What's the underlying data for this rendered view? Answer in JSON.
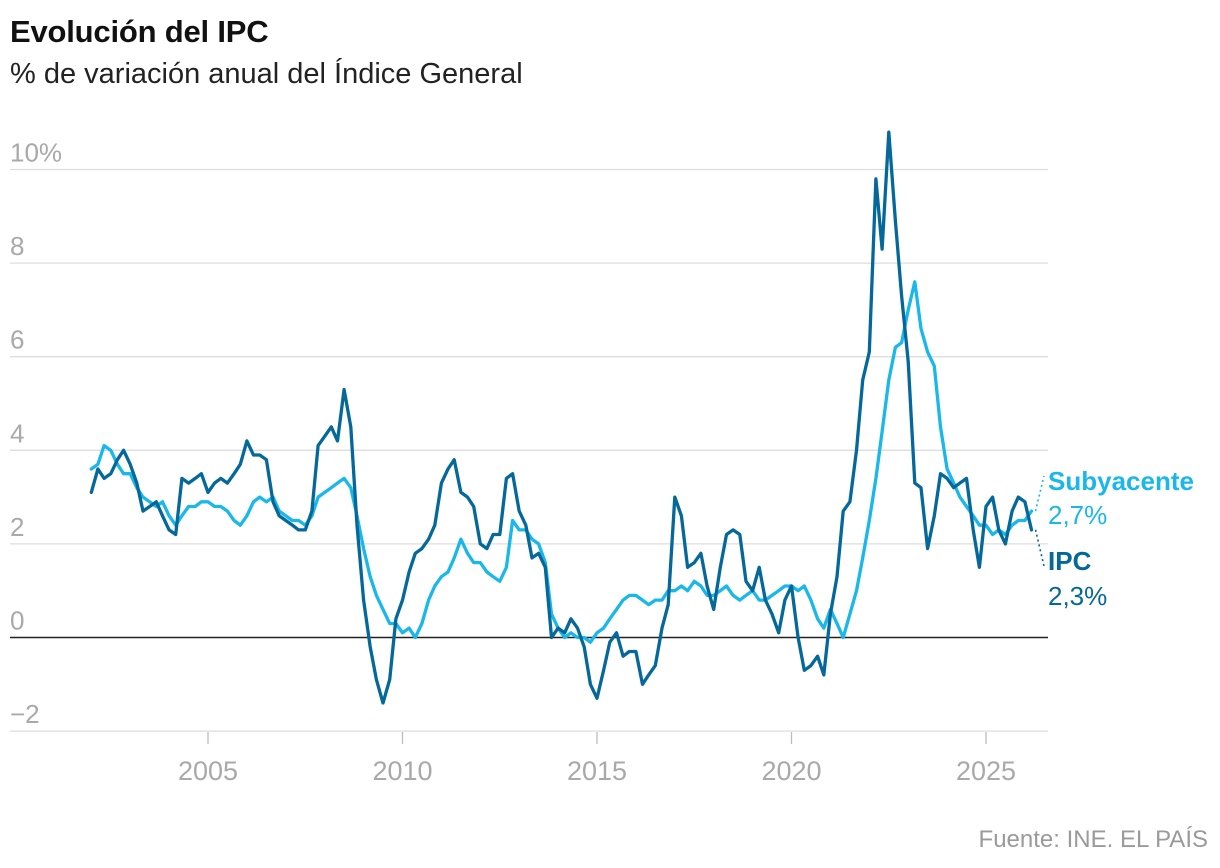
{
  "title": "Evolución del IPC",
  "subtitle": "% de variación anual del Índice General",
  "source": "Fuente: INE. EL PAÍS",
  "chart_data": {
    "type": "line",
    "ylim": [
      -2,
      10
    ],
    "xlim": [
      2002.0,
      2026.3
    ],
    "y_ticks": [
      {
        "value": 10,
        "label": "10%"
      },
      {
        "value": 8,
        "label": "8"
      },
      {
        "value": 6,
        "label": "6"
      },
      {
        "value": 4,
        "label": "4"
      },
      {
        "value": 2,
        "label": "2"
      },
      {
        "value": 0,
        "label": "0"
      },
      {
        "value": -2,
        "label": "−2"
      }
    ],
    "x_ticks": [
      {
        "value": 2005,
        "label": "2005"
      },
      {
        "value": 2010,
        "label": "2010"
      },
      {
        "value": 2015,
        "label": "2015"
      },
      {
        "value": 2020,
        "label": "2020"
      },
      {
        "value": 2025,
        "label": "2025"
      }
    ],
    "grid": true,
    "legend": "end-labels-right",
    "series": [
      {
        "name": "Subyacente",
        "color": "#1ab8ea",
        "end_label": "Subyacente",
        "end_value_label": "2,7%",
        "points": [
          [
            2002.0,
            3.6
          ],
          [
            2002.17,
            3.7
          ],
          [
            2002.33,
            4.1
          ],
          [
            2002.5,
            4.0
          ],
          [
            2002.67,
            3.7
          ],
          [
            2002.83,
            3.5
          ],
          [
            2003.0,
            3.5
          ],
          [
            2003.17,
            3.2
          ],
          [
            2003.33,
            3.0
          ],
          [
            2003.5,
            2.9
          ],
          [
            2003.67,
            2.8
          ],
          [
            2003.83,
            2.9
          ],
          [
            2004.0,
            2.6
          ],
          [
            2004.17,
            2.4
          ],
          [
            2004.33,
            2.6
          ],
          [
            2004.5,
            2.8
          ],
          [
            2004.67,
            2.8
          ],
          [
            2004.83,
            2.9
          ],
          [
            2005.0,
            2.9
          ],
          [
            2005.17,
            2.8
          ],
          [
            2005.33,
            2.8
          ],
          [
            2005.5,
            2.7
          ],
          [
            2005.67,
            2.5
          ],
          [
            2005.83,
            2.4
          ],
          [
            2006.0,
            2.6
          ],
          [
            2006.17,
            2.9
          ],
          [
            2006.33,
            3.0
          ],
          [
            2006.5,
            2.9
          ],
          [
            2006.67,
            3.0
          ],
          [
            2006.83,
            2.7
          ],
          [
            2007.0,
            2.6
          ],
          [
            2007.17,
            2.5
          ],
          [
            2007.33,
            2.5
          ],
          [
            2007.5,
            2.4
          ],
          [
            2007.67,
            2.6
          ],
          [
            2007.83,
            3.0
          ],
          [
            2008.0,
            3.1
          ],
          [
            2008.17,
            3.2
          ],
          [
            2008.33,
            3.3
          ],
          [
            2008.5,
            3.4
          ],
          [
            2008.67,
            3.2
          ],
          [
            2008.83,
            2.6
          ],
          [
            2009.0,
            1.9
          ],
          [
            2009.17,
            1.3
          ],
          [
            2009.33,
            0.9
          ],
          [
            2009.5,
            0.6
          ],
          [
            2009.67,
            0.3
          ],
          [
            2009.83,
            0.3
          ],
          [
            2010.0,
            0.1
          ],
          [
            2010.17,
            0.2
          ],
          [
            2010.33,
            0.0
          ],
          [
            2010.5,
            0.3
          ],
          [
            2010.67,
            0.8
          ],
          [
            2010.83,
            1.1
          ],
          [
            2011.0,
            1.3
          ],
          [
            2011.17,
            1.4
          ],
          [
            2011.33,
            1.7
          ],
          [
            2011.5,
            2.1
          ],
          [
            2011.67,
            1.8
          ],
          [
            2011.83,
            1.6
          ],
          [
            2012.0,
            1.6
          ],
          [
            2012.17,
            1.4
          ],
          [
            2012.33,
            1.3
          ],
          [
            2012.5,
            1.2
          ],
          [
            2012.67,
            1.5
          ],
          [
            2012.83,
            2.5
          ],
          [
            2013.0,
            2.3
          ],
          [
            2013.17,
            2.3
          ],
          [
            2013.33,
            2.1
          ],
          [
            2013.5,
            2.0
          ],
          [
            2013.67,
            1.6
          ],
          [
            2013.83,
            0.5
          ],
          [
            2014.0,
            0.2
          ],
          [
            2014.17,
            0.0
          ],
          [
            2014.33,
            0.1
          ],
          [
            2014.5,
            0.0
          ],
          [
            2014.67,
            0.0
          ],
          [
            2014.83,
            -0.1
          ],
          [
            2015.0,
            0.1
          ],
          [
            2015.17,
            0.2
          ],
          [
            2015.33,
            0.4
          ],
          [
            2015.5,
            0.6
          ],
          [
            2015.67,
            0.8
          ],
          [
            2015.83,
            0.9
          ],
          [
            2016.0,
            0.9
          ],
          [
            2016.17,
            0.8
          ],
          [
            2016.33,
            0.7
          ],
          [
            2016.5,
            0.8
          ],
          [
            2016.67,
            0.8
          ],
          [
            2016.83,
            1.0
          ],
          [
            2017.0,
            1.0
          ],
          [
            2017.17,
            1.1
          ],
          [
            2017.33,
            1.0
          ],
          [
            2017.5,
            1.2
          ],
          [
            2017.67,
            1.1
          ],
          [
            2017.83,
            0.9
          ],
          [
            2018.0,
            0.9
          ],
          [
            2018.17,
            1.0
          ],
          [
            2018.33,
            1.1
          ],
          [
            2018.5,
            0.9
          ],
          [
            2018.67,
            0.8
          ],
          [
            2018.83,
            0.9
          ],
          [
            2019.0,
            1.0
          ],
          [
            2019.17,
            0.8
          ],
          [
            2019.33,
            0.8
          ],
          [
            2019.5,
            0.9
          ],
          [
            2019.67,
            1.0
          ],
          [
            2019.83,
            1.1
          ],
          [
            2020.0,
            1.1
          ],
          [
            2020.17,
            1.0
          ],
          [
            2020.33,
            1.1
          ],
          [
            2020.5,
            0.8
          ],
          [
            2020.67,
            0.4
          ],
          [
            2020.83,
            0.2
          ],
          [
            2021.0,
            0.6
          ],
          [
            2021.17,
            0.3
          ],
          [
            2021.33,
            0.0
          ],
          [
            2021.5,
            0.5
          ],
          [
            2021.67,
            1.0
          ],
          [
            2021.83,
            1.7
          ],
          [
            2022.0,
            2.5
          ],
          [
            2022.17,
            3.4
          ],
          [
            2022.33,
            4.4
          ],
          [
            2022.5,
            5.5
          ],
          [
            2022.67,
            6.2
          ],
          [
            2022.83,
            6.3
          ],
          [
            2023.0,
            7.0
          ],
          [
            2023.17,
            7.6
          ],
          [
            2023.33,
            6.6
          ],
          [
            2023.5,
            6.1
          ],
          [
            2023.67,
            5.8
          ],
          [
            2023.83,
            4.5
          ],
          [
            2024.0,
            3.6
          ],
          [
            2024.17,
            3.3
          ],
          [
            2024.33,
            3.0
          ],
          [
            2024.5,
            2.8
          ],
          [
            2024.67,
            2.6
          ],
          [
            2024.83,
            2.4
          ],
          [
            2025.0,
            2.4
          ],
          [
            2025.17,
            2.2
          ],
          [
            2025.33,
            2.3
          ],
          [
            2025.5,
            2.2
          ],
          [
            2025.67,
            2.4
          ],
          [
            2025.83,
            2.5
          ],
          [
            2026.0,
            2.5
          ],
          [
            2026.17,
            2.7
          ]
        ]
      },
      {
        "name": "IPC",
        "color": "#04689a",
        "end_label": "IPC",
        "end_value_label": "2,3%",
        "points": [
          [
            2002.0,
            3.1
          ],
          [
            2002.17,
            3.6
          ],
          [
            2002.33,
            3.4
          ],
          [
            2002.5,
            3.5
          ],
          [
            2002.67,
            3.8
          ],
          [
            2002.83,
            4.0
          ],
          [
            2003.0,
            3.7
          ],
          [
            2003.17,
            3.3
          ],
          [
            2003.33,
            2.7
          ],
          [
            2003.5,
            2.8
          ],
          [
            2003.67,
            2.9
          ],
          [
            2003.83,
            2.6
          ],
          [
            2004.0,
            2.3
          ],
          [
            2004.17,
            2.2
          ],
          [
            2004.33,
            3.4
          ],
          [
            2004.5,
            3.3
          ],
          [
            2004.67,
            3.4
          ],
          [
            2004.83,
            3.5
          ],
          [
            2005.0,
            3.1
          ],
          [
            2005.17,
            3.3
          ],
          [
            2005.33,
            3.4
          ],
          [
            2005.5,
            3.3
          ],
          [
            2005.67,
            3.5
          ],
          [
            2005.83,
            3.7
          ],
          [
            2006.0,
            4.2
          ],
          [
            2006.17,
            3.9
          ],
          [
            2006.33,
            3.9
          ],
          [
            2006.5,
            3.8
          ],
          [
            2006.67,
            2.9
          ],
          [
            2006.83,
            2.6
          ],
          [
            2007.0,
            2.5
          ],
          [
            2007.17,
            2.4
          ],
          [
            2007.33,
            2.3
          ],
          [
            2007.5,
            2.3
          ],
          [
            2007.67,
            2.7
          ],
          [
            2007.83,
            4.1
          ],
          [
            2008.0,
            4.3
          ],
          [
            2008.17,
            4.5
          ],
          [
            2008.33,
            4.2
          ],
          [
            2008.5,
            5.3
          ],
          [
            2008.67,
            4.5
          ],
          [
            2008.83,
            2.4
          ],
          [
            2009.0,
            0.8
          ],
          [
            2009.17,
            -0.2
          ],
          [
            2009.33,
            -0.9
          ],
          [
            2009.5,
            -1.4
          ],
          [
            2009.67,
            -0.9
          ],
          [
            2009.83,
            0.4
          ],
          [
            2010.0,
            0.8
          ],
          [
            2010.17,
            1.4
          ],
          [
            2010.33,
            1.8
          ],
          [
            2010.5,
            1.9
          ],
          [
            2010.67,
            2.1
          ],
          [
            2010.83,
            2.4
          ],
          [
            2011.0,
            3.3
          ],
          [
            2011.17,
            3.6
          ],
          [
            2011.33,
            3.8
          ],
          [
            2011.5,
            3.1
          ],
          [
            2011.67,
            3.0
          ],
          [
            2011.83,
            2.8
          ],
          [
            2012.0,
            2.0
          ],
          [
            2012.17,
            1.9
          ],
          [
            2012.33,
            2.2
          ],
          [
            2012.5,
            2.2
          ],
          [
            2012.67,
            3.4
          ],
          [
            2012.83,
            3.5
          ],
          [
            2013.0,
            2.7
          ],
          [
            2013.17,
            2.4
          ],
          [
            2013.33,
            1.7
          ],
          [
            2013.5,
            1.8
          ],
          [
            2013.67,
            1.5
          ],
          [
            2013.83,
            0.0
          ],
          [
            2014.0,
            0.2
          ],
          [
            2014.17,
            0.1
          ],
          [
            2014.33,
            0.4
          ],
          [
            2014.5,
            0.2
          ],
          [
            2014.67,
            -0.2
          ],
          [
            2014.83,
            -1.0
          ],
          [
            2015.0,
            -1.3
          ],
          [
            2015.17,
            -0.7
          ],
          [
            2015.33,
            -0.1
          ],
          [
            2015.5,
            0.1
          ],
          [
            2015.67,
            -0.4
          ],
          [
            2015.83,
            -0.3
          ],
          [
            2016.0,
            -0.3
          ],
          [
            2016.17,
            -1.0
          ],
          [
            2016.33,
            -0.8
          ],
          [
            2016.5,
            -0.6
          ],
          [
            2016.67,
            0.2
          ],
          [
            2016.83,
            0.7
          ],
          [
            2017.0,
            3.0
          ],
          [
            2017.17,
            2.6
          ],
          [
            2017.33,
            1.5
          ],
          [
            2017.5,
            1.6
          ],
          [
            2017.67,
            1.8
          ],
          [
            2017.83,
            1.1
          ],
          [
            2018.0,
            0.6
          ],
          [
            2018.17,
            1.5
          ],
          [
            2018.33,
            2.2
          ],
          [
            2018.5,
            2.3
          ],
          [
            2018.67,
            2.2
          ],
          [
            2018.83,
            1.2
          ],
          [
            2019.0,
            1.0
          ],
          [
            2019.17,
            1.5
          ],
          [
            2019.33,
            0.8
          ],
          [
            2019.5,
            0.5
          ],
          [
            2019.67,
            0.1
          ],
          [
            2019.83,
            0.8
          ],
          [
            2020.0,
            1.1
          ],
          [
            2020.17,
            0.0
          ],
          [
            2020.33,
            -0.7
          ],
          [
            2020.5,
            -0.6
          ],
          [
            2020.67,
            -0.4
          ],
          [
            2020.83,
            -0.8
          ],
          [
            2021.0,
            0.5
          ],
          [
            2021.17,
            1.3
          ],
          [
            2021.33,
            2.7
          ],
          [
            2021.5,
            2.9
          ],
          [
            2021.67,
            4.0
          ],
          [
            2021.83,
            5.5
          ],
          [
            2022.0,
            6.1
          ],
          [
            2022.17,
            9.8
          ],
          [
            2022.33,
            8.3
          ],
          [
            2022.5,
            10.8
          ],
          [
            2022.67,
            8.9
          ],
          [
            2022.83,
            7.3
          ],
          [
            2023.0,
            5.9
          ],
          [
            2023.17,
            3.3
          ],
          [
            2023.33,
            3.2
          ],
          [
            2023.5,
            1.9
          ],
          [
            2023.67,
            2.6
          ],
          [
            2023.83,
            3.5
          ],
          [
            2024.0,
            3.4
          ],
          [
            2024.17,
            3.2
          ],
          [
            2024.33,
            3.3
          ],
          [
            2024.5,
            3.4
          ],
          [
            2024.67,
            2.3
          ],
          [
            2024.83,
            1.5
          ],
          [
            2025.0,
            2.8
          ],
          [
            2025.17,
            3.0
          ],
          [
            2025.33,
            2.3
          ],
          [
            2025.5,
            2.0
          ],
          [
            2025.67,
            2.7
          ],
          [
            2025.83,
            3.0
          ],
          [
            2026.0,
            2.9
          ],
          [
            2026.17,
            2.3
          ]
        ]
      }
    ]
  }
}
